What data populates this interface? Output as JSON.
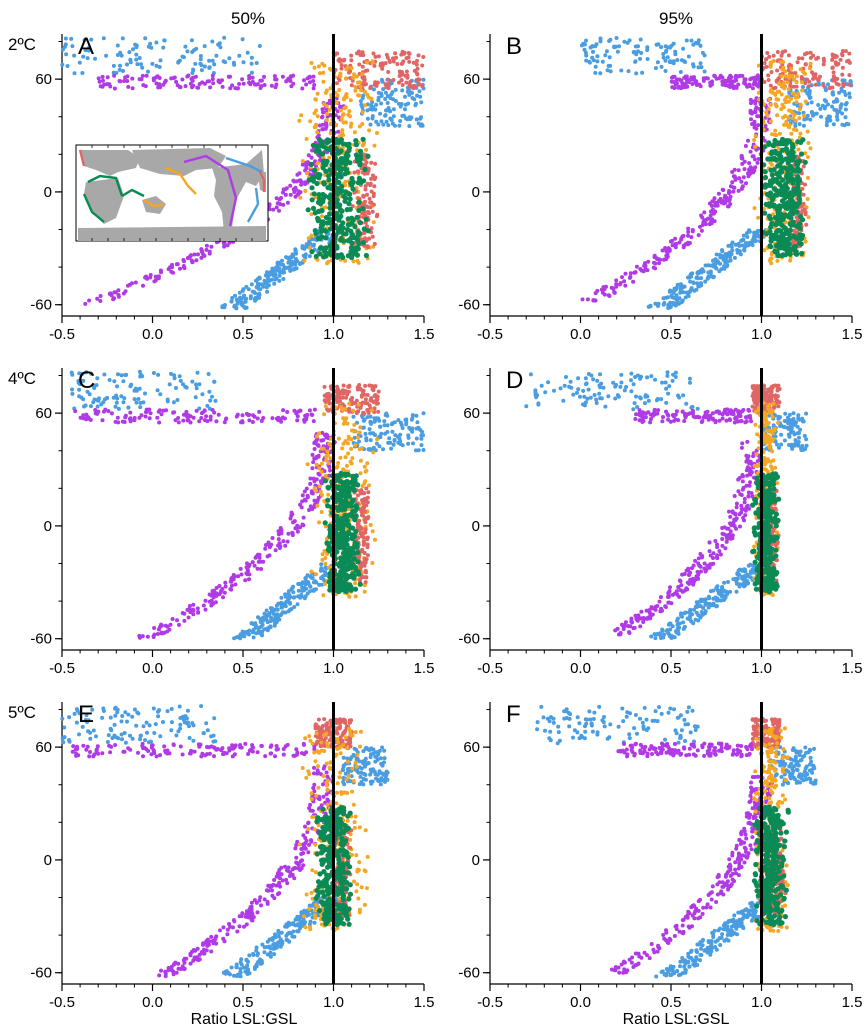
{
  "column_titles": [
    "50%",
    "95%"
  ],
  "row_labels": [
    "2ºC",
    "4ºC",
    "5ºC"
  ],
  "xlabel": "Ratio LSL:GSL",
  "xticks": [
    "-0.5",
    "0.0",
    "0.5",
    "1.0",
    "1.5"
  ],
  "yticks": [
    "-60",
    "0",
    "60"
  ],
  "colors": {
    "red": "#e06666",
    "blue": "#4a9de0",
    "purple": "#b03ae6",
    "orange": "#f5a623",
    "green": "#0a8a55",
    "map_land": "#a8a8a8",
    "reference_line": "#000000"
  },
  "inset_map": {
    "present_in": "A",
    "description_icon": "world-map-icon"
  },
  "chart_data": [
    {
      "type": "scatter",
      "panel": "A",
      "percentile": "50%",
      "warming": "2ºC",
      "xlim": [
        -0.5,
        1.5
      ],
      "ylim": [
        -66,
        84
      ],
      "reference_line_x": 1.0,
      "clusters": {
        "blue_arctic": {
          "x": [
            -0.5,
            0.6
          ],
          "y": [
            63,
            82
          ]
        },
        "purple_north": {
          "x": [
            -0.3,
            0.9
          ],
          "y": [
            55,
            62
          ]
        },
        "red_north": {
          "x": [
            1.0,
            1.5
          ],
          "y": [
            55,
            75
          ]
        },
        "blue_east": {
          "x": [
            1.15,
            1.5
          ],
          "y": [
            35,
            60
          ]
        },
        "orange_mid": {
          "x": [
            0.8,
            1.25
          ],
          "y": [
            -38,
            70
          ]
        },
        "green_tropics": {
          "x": [
            0.85,
            1.2
          ],
          "y": [
            -35,
            28
          ]
        },
        "red_tropics": {
          "x": [
            1.1,
            1.25
          ],
          "y": [
            -30,
            20
          ]
        },
        "purple_south": {
          "x": [
            -0.35,
            1.0
          ],
          "y": [
            -60,
            50
          ]
        },
        "blue_south": {
          "x": [
            0.3,
            1.0
          ],
          "y": [
            -62,
            -20
          ]
        }
      }
    },
    {
      "type": "scatter",
      "panel": "B",
      "percentile": "95%",
      "warming": "2ºC",
      "xlim": [
        -0.5,
        1.5
      ],
      "ylim": [
        -66,
        84
      ],
      "reference_line_x": 1.0,
      "clusters": {
        "blue_arctic": {
          "x": [
            0.0,
            0.7
          ],
          "y": [
            63,
            82
          ]
        },
        "purple_north": {
          "x": [
            0.5,
            1.0
          ],
          "y": [
            55,
            62
          ]
        },
        "red_north": {
          "x": [
            1.0,
            1.5
          ],
          "y": [
            55,
            75
          ]
        },
        "blue_east": {
          "x": [
            1.15,
            1.5
          ],
          "y": [
            35,
            60
          ]
        },
        "orange_mid": {
          "x": [
            0.95,
            1.3
          ],
          "y": [
            -38,
            70
          ]
        },
        "green_tropics": {
          "x": [
            1.0,
            1.25
          ],
          "y": [
            -35,
            28
          ]
        },
        "red_tropics": {
          "x": [
            1.15,
            1.25
          ],
          "y": [
            -30,
            20
          ]
        },
        "purple_south": {
          "x": [
            0.05,
            1.0
          ],
          "y": [
            -58,
            50
          ]
        },
        "blue_south": {
          "x": [
            0.3,
            1.0
          ],
          "y": [
            -62,
            -20
          ]
        }
      }
    },
    {
      "type": "scatter",
      "panel": "C",
      "percentile": "50%",
      "warming": "4ºC",
      "xlim": [
        -0.5,
        1.5
      ],
      "ylim": [
        -66,
        84
      ],
      "reference_line_x": 1.0,
      "clusters": {
        "blue_arctic": {
          "x": [
            -0.45,
            0.35
          ],
          "y": [
            62,
            82
          ]
        },
        "purple_north": {
          "x": [
            -0.45,
            0.9
          ],
          "y": [
            55,
            62
          ]
        },
        "red_north": {
          "x": [
            0.95,
            1.25
          ],
          "y": [
            60,
            75
          ]
        },
        "blue_east": {
          "x": [
            1.1,
            1.5
          ],
          "y": [
            40,
            60
          ]
        },
        "orange_mid": {
          "x": [
            0.85,
            1.25
          ],
          "y": [
            -38,
            66
          ]
        },
        "green_tropics": {
          "x": [
            0.95,
            1.15
          ],
          "y": [
            -35,
            28
          ]
        },
        "red_tropics": {
          "x": [
            1.1,
            1.2
          ],
          "y": [
            -30,
            20
          ]
        },
        "purple_south": {
          "x": [
            -0.05,
            0.95
          ],
          "y": [
            -60,
            50
          ]
        },
        "blue_south": {
          "x": [
            0.4,
            1.0
          ],
          "y": [
            -60,
            -20
          ]
        }
      }
    },
    {
      "type": "scatter",
      "panel": "D",
      "percentile": "95%",
      "warming": "4ºC",
      "xlim": [
        -0.5,
        1.5
      ],
      "ylim": [
        -66,
        84
      ],
      "reference_line_x": 1.0,
      "clusters": {
        "blue_arctic": {
          "x": [
            -0.3,
            0.65
          ],
          "y": [
            62,
            82
          ]
        },
        "purple_north": {
          "x": [
            0.3,
            0.95
          ],
          "y": [
            55,
            62
          ]
        },
        "red_north": {
          "x": [
            0.95,
            1.1
          ],
          "y": [
            60,
            75
          ]
        },
        "blue_east": {
          "x": [
            1.0,
            1.25
          ],
          "y": [
            40,
            60
          ]
        },
        "orange_mid": {
          "x": [
            0.95,
            1.1
          ],
          "y": [
            -38,
            66
          ]
        },
        "green_tropics": {
          "x": [
            0.95,
            1.1
          ],
          "y": [
            -35,
            28
          ]
        },
        "red_tropics": {
          "x": [
            1.0,
            1.1
          ],
          "y": [
            -30,
            20
          ]
        },
        "purple_south": {
          "x": [
            0.2,
            0.95
          ],
          "y": [
            -58,
            45
          ]
        },
        "blue_south": {
          "x": [
            0.3,
            1.0
          ],
          "y": [
            -60,
            -20
          ]
        }
      }
    },
    {
      "type": "scatter",
      "panel": "E",
      "percentile": "50%",
      "warming": "5ºC",
      "xlim": [
        -0.5,
        1.5
      ],
      "ylim": [
        -66,
        84
      ],
      "reference_line_x": 1.0,
      "clusters": {
        "blue_arctic": {
          "x": [
            -0.5,
            0.35
          ],
          "y": [
            62,
            82
          ]
        },
        "purple_north": {
          "x": [
            -0.45,
            0.9
          ],
          "y": [
            55,
            62
          ]
        },
        "red_north": {
          "x": [
            0.9,
            1.1
          ],
          "y": [
            60,
            75
          ]
        },
        "blue_east": {
          "x": [
            1.05,
            1.3
          ],
          "y": [
            40,
            60
          ]
        },
        "orange_mid": {
          "x": [
            0.8,
            1.2
          ],
          "y": [
            -38,
            70
          ]
        },
        "green_tropics": {
          "x": [
            0.9,
            1.1
          ],
          "y": [
            -35,
            28
          ]
        },
        "red_tropics": {
          "x": [
            1.0,
            1.1
          ],
          "y": [
            -30,
            20
          ]
        },
        "purple_south": {
          "x": [
            0.05,
            0.95
          ],
          "y": [
            -62,
            50
          ]
        },
        "blue_south": {
          "x": [
            0.3,
            1.0
          ],
          "y": [
            -62,
            -20
          ]
        }
      }
    },
    {
      "type": "scatter",
      "panel": "F",
      "percentile": "95%",
      "warming": "5ºC",
      "xlim": [
        -0.5,
        1.5
      ],
      "ylim": [
        -66,
        84
      ],
      "reference_line_x": 1.0,
      "clusters": {
        "blue_arctic": {
          "x": [
            -0.25,
            0.65
          ],
          "y": [
            62,
            82
          ]
        },
        "purple_north": {
          "x": [
            0.2,
            0.95
          ],
          "y": [
            55,
            62
          ]
        },
        "red_north": {
          "x": [
            0.95,
            1.1
          ],
          "y": [
            60,
            75
          ]
        },
        "blue_east": {
          "x": [
            1.05,
            1.3
          ],
          "y": [
            40,
            60
          ]
        },
        "orange_mid": {
          "x": [
            0.95,
            1.15
          ],
          "y": [
            -38,
            70
          ]
        },
        "green_tropics": {
          "x": [
            0.95,
            1.15
          ],
          "y": [
            -35,
            28
          ]
        },
        "red_tropics": {
          "x": [
            1.0,
            1.15
          ],
          "y": [
            -30,
            20
          ]
        },
        "purple_south": {
          "x": [
            0.2,
            1.0
          ],
          "y": [
            -60,
            45
          ]
        },
        "blue_south": {
          "x": [
            0.35,
            1.05
          ],
          "y": [
            -62,
            -20
          ]
        }
      }
    }
  ]
}
